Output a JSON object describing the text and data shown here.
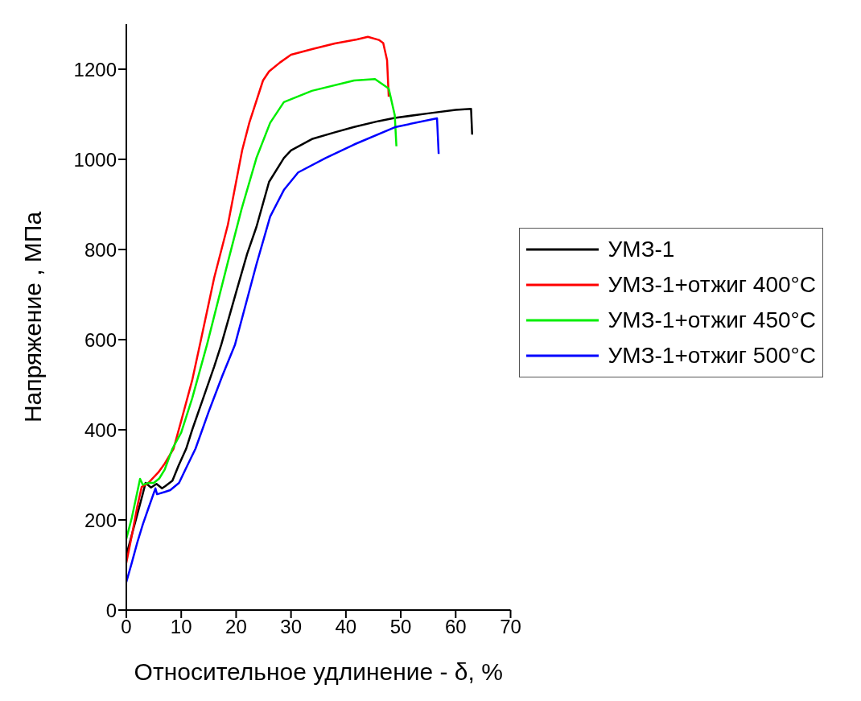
{
  "chart_data": {
    "type": "line",
    "xlabel": "Относительное удлинение - δ, %",
    "ylabel": "Напряжение , МПа",
    "xlim": [
      0,
      70
    ],
    "xticks": [
      0,
      10,
      20,
      30,
      40,
      50,
      60,
      70
    ],
    "ylim": [
      0,
      1300
    ],
    "yticks": [
      0,
      200,
      400,
      600,
      800,
      1000,
      1200
    ],
    "grid": false,
    "legend": "right",
    "marker": "none",
    "line_style": "solid",
    "series": [
      {
        "name": "УМЗ-1",
        "color": "#000000",
        "x": [
          0,
          2,
          3,
          3.5,
          4.5,
          5.5,
          6.5,
          7.1,
          8.4,
          9.5,
          10.9,
          12,
          14,
          16,
          17.3,
          20,
          22,
          23.7,
          26,
          28.7,
          30,
          33.8,
          38,
          41.5,
          46,
          48.9,
          55,
          60,
          62.8,
          63
        ],
        "values": [
          122,
          212,
          258,
          282,
          272,
          280,
          270,
          275,
          287,
          320,
          358,
          400,
          470,
          540,
          589,
          705,
          790,
          850,
          950,
          1003,
          1020,
          1045,
          1060,
          1072,
          1085,
          1092,
          1102,
          1110,
          1112,
          1055
        ]
      },
      {
        "name": "УМЗ-1+отжиг 400°C",
        "color": "#ff0000",
        "x": [
          0,
          1,
          2,
          2.8,
          4,
          5.8,
          7,
          8.6,
          10,
          12,
          13.6,
          16,
          18.5,
          21.1,
          22.4,
          24.9,
          26,
          28,
          30,
          34,
          38,
          42,
          44,
          46,
          46.8,
          47.5,
          47.8
        ],
        "values": [
          105,
          165,
          230,
          273,
          282,
          305,
          325,
          358,
          420,
          510,
          600,
          737,
          855,
          1020,
          1081,
          1175,
          1195,
          1215,
          1232,
          1245,
          1257,
          1266,
          1272,
          1265,
          1258,
          1220,
          1139
        ]
      },
      {
        "name": "УМЗ-1+отжиг 450°C",
        "color": "#00ee00",
        "x": [
          0,
          1,
          2,
          2.5,
          3,
          4,
          5,
          6,
          7,
          8.4,
          10,
          12,
          14.7,
          18.5,
          21,
          23.7,
          26.2,
          28.7,
          33.8,
          41.5,
          45.3,
          47.8,
          48.9,
          49.2
        ],
        "values": [
          158,
          205,
          262,
          291,
          278,
          282,
          282,
          292,
          312,
          358,
          394,
          470,
          589,
          772,
          890,
          1003,
          1081,
          1127,
          1152,
          1175,
          1178,
          1157,
          1098,
          1029
        ]
      },
      {
        "name": "УМЗ-1+отжиг 500°C",
        "color": "#0000ff",
        "x": [
          0,
          1,
          2,
          3,
          4,
          5.3,
          5.6,
          7,
          8,
          9.6,
          11,
          12.6,
          15,
          17.5,
          19.8,
          23.7,
          26.2,
          28.7,
          31.3,
          36.3,
          41.5,
          49.1,
          56.6,
          56.9
        ],
        "values": [
          62,
          105,
          150,
          190,
          225,
          270,
          257,
          262,
          266,
          282,
          318,
          358,
          440,
          520,
          589,
          767,
          873,
          932,
          971,
          1003,
          1033,
          1072,
          1091,
          1012
        ]
      }
    ]
  }
}
